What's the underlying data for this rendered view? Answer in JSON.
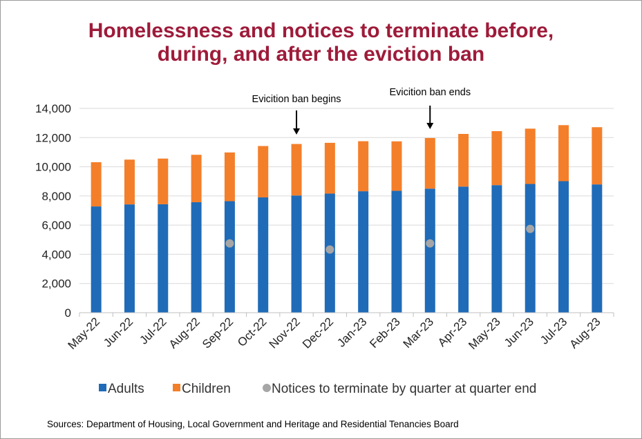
{
  "title_line1": "Homelessness and notices to terminate before,",
  "title_line2": "during, and after the eviction ban",
  "source": "Sources: Department of Housing, Local Government and Heritage and Residential Tenancies Board",
  "annotations": {
    "ban_begins": "Evicition ban begins",
    "ban_ends": "Evicition ban ends"
  },
  "colors": {
    "title": "#9e1b3a",
    "adults": "#1f6bb8",
    "children": "#f47f2a",
    "notices": "#a6a6a6"
  },
  "chart_data": {
    "type": "bar",
    "stacked": true,
    "categories": [
      "May-22",
      "Jun-22",
      "Jul-22",
      "Aug-22",
      "Sep-22",
      "Oct-22",
      "Nov-22",
      "Dec-22",
      "Jan-23",
      "Feb-23",
      "Mar-23",
      "Apr-23",
      "May-23",
      "Jun-23",
      "Jul-23",
      "Aug-23"
    ],
    "series": [
      {
        "name": "Adults",
        "type": "bar",
        "values": [
          7280,
          7420,
          7430,
          7570,
          7640,
          7900,
          8030,
          8160,
          8320,
          8350,
          8500,
          8640,
          8740,
          8820,
          9010,
          8790
        ]
      },
      {
        "name": "Children",
        "type": "bar",
        "values": [
          3030,
          3070,
          3130,
          3250,
          3340,
          3520,
          3530,
          3480,
          3430,
          3390,
          3470,
          3610,
          3700,
          3790,
          3840,
          3920
        ]
      },
      {
        "name": "Notices to terminate by quarter at quarter end",
        "type": "scatter",
        "values": [
          null,
          null,
          null,
          null,
          4750,
          null,
          null,
          4330,
          null,
          null,
          4750,
          null,
          null,
          5740,
          null,
          null
        ]
      }
    ],
    "ylim": [
      0,
      14000
    ],
    "yticks": [
      0,
      2000,
      4000,
      6000,
      8000,
      10000,
      12000,
      14000
    ],
    "ytick_labels": [
      "0",
      "2,000",
      "4,000",
      "6,000",
      "8,000",
      "10,000",
      "12,000",
      "14,000"
    ],
    "grid": true,
    "legend_position": "bottom",
    "annotations": [
      {
        "text": "Evicition ban begins",
        "category": "Nov-22"
      },
      {
        "text": "Evicition ban ends",
        "category": "Mar-23"
      }
    ]
  }
}
